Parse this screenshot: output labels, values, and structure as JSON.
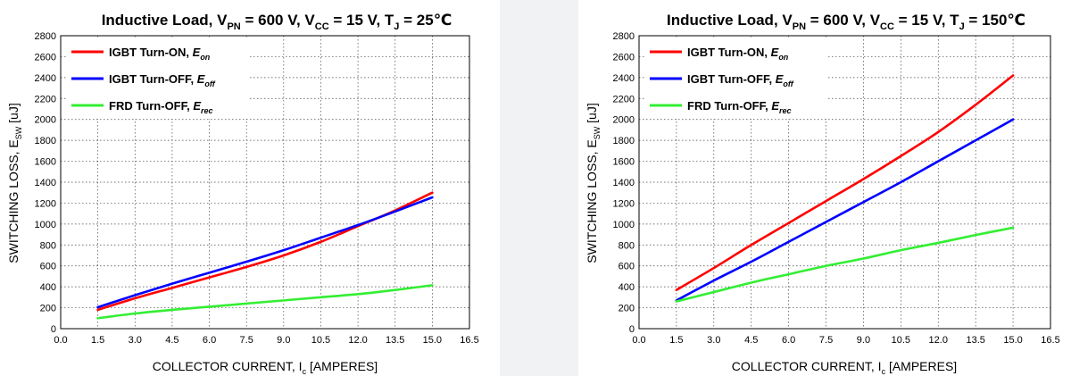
{
  "chart_data": [
    {
      "type": "line",
      "title": {
        "prefix": "Inductive Load, V",
        "vpn_sub": "PN",
        "vpn_val": " = 600 V, V",
        "vcc_sub": "CC",
        "vcc_val": " = 15 V, T",
        "tj_sub": "J",
        "tj_val": " = 25℃"
      },
      "xlabel": {
        "main": "COLLECTOR CURRENT, I",
        "sub": "c",
        "tail": " [AMPERES]"
      },
      "ylabel": {
        "main": "SWITCHING LOSS, E",
        "sub": "SW",
        "tail": " [uJ]"
      },
      "xlim": [
        0,
        16.5
      ],
      "ylim": [
        0,
        2800
      ],
      "xticks": [
        "0.0",
        "1.5",
        "3.0",
        "4.5",
        "6.0",
        "7.5",
        "9.0",
        "10.5",
        "12.0",
        "13.5",
        "15.0",
        "16.5"
      ],
      "yticks": [
        "0",
        "200",
        "400",
        "600",
        "800",
        "1000",
        "1200",
        "1400",
        "1600",
        "1800",
        "2000",
        "2200",
        "2400",
        "2600",
        "2800"
      ],
      "grid": true,
      "legend_position": "top-left",
      "series": [
        {
          "name": "IGBT Turn-ON, ",
          "sym": "E",
          "sub": "on",
          "color": "#ff0000",
          "x": [
            1.5,
            3,
            4.5,
            6,
            7.5,
            9,
            10.5,
            12,
            13.5,
            15
          ],
          "y": [
            180,
            290,
            390,
            490,
            590,
            700,
            830,
            980,
            1130,
            1300
          ]
        },
        {
          "name": "IGBT Turn-OFF, ",
          "sym": "E",
          "sub": "off",
          "color": "#0000ff",
          "x": [
            1.5,
            3,
            4.5,
            6,
            7.5,
            9,
            10.5,
            12,
            13.5,
            15
          ],
          "y": [
            205,
            320,
            430,
            535,
            640,
            750,
            870,
            990,
            1120,
            1255
          ]
        },
        {
          "name": "FRD Turn-OFF, ",
          "sym": "E",
          "sub": "rec",
          "color": "#33ee33",
          "x": [
            1.5,
            3,
            4.5,
            6,
            7.5,
            9,
            10.5,
            12,
            13.5,
            15
          ],
          "y": [
            100,
            145,
            180,
            210,
            240,
            270,
            300,
            330,
            370,
            415
          ]
        }
      ]
    },
    {
      "type": "line",
      "title": {
        "prefix": "Inductive Load, V",
        "vpn_sub": "PN",
        "vpn_val": " = 600 V, V",
        "vcc_sub": "CC",
        "vcc_val": " = 15 V, T",
        "tj_sub": "J",
        "tj_val": " = 150℃"
      },
      "xlabel": {
        "main": "COLLECTOR CURRENT, I",
        "sub": "c",
        "tail": " [AMPERES]"
      },
      "ylabel": {
        "main": "SWITCHING LOSS, E",
        "sub": "SW",
        "tail": " [uJ]"
      },
      "xlim": [
        0,
        16.5
      ],
      "ylim": [
        0,
        2800
      ],
      "xticks": [
        "0.0",
        "1.5",
        "3.0",
        "4.5",
        "6.0",
        "7.5",
        "9.0",
        "10.5",
        "12.0",
        "13.5",
        "15.0",
        "16.5"
      ],
      "yticks": [
        "0",
        "200",
        "400",
        "600",
        "800",
        "1000",
        "1200",
        "1400",
        "1600",
        "1800",
        "2000",
        "2200",
        "2400",
        "2600",
        "2800"
      ],
      "grid": true,
      "legend_position": "top-left",
      "series": [
        {
          "name": "IGBT Turn-ON, ",
          "sym": "E",
          "sub": "on",
          "color": "#ff0000",
          "x": [
            1.5,
            3,
            4.5,
            6,
            7.5,
            9,
            10.5,
            12,
            13.5,
            15
          ],
          "y": [
            370,
            580,
            800,
            1010,
            1220,
            1430,
            1650,
            1880,
            2140,
            2420
          ]
        },
        {
          "name": "IGBT Turn-OFF, ",
          "sym": "E",
          "sub": "off",
          "color": "#0000ff",
          "x": [
            1.5,
            3,
            4.5,
            6,
            7.5,
            9,
            10.5,
            12,
            13.5,
            15
          ],
          "y": [
            270,
            460,
            640,
            830,
            1020,
            1210,
            1400,
            1600,
            1800,
            2000
          ]
        },
        {
          "name": "FRD Turn-OFF, ",
          "sym": "E",
          "sub": "rec",
          "color": "#33ee33",
          "x": [
            1.5,
            3,
            4.5,
            6,
            7.5,
            9,
            10.5,
            12,
            13.5,
            15
          ],
          "y": [
            260,
            350,
            440,
            520,
            600,
            670,
            750,
            820,
            895,
            965
          ]
        }
      ]
    }
  ]
}
